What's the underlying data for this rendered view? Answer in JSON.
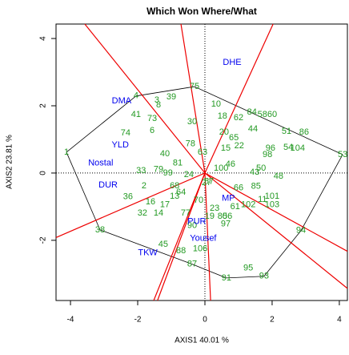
{
  "chart_data": {
    "type": "biplot",
    "title": "Which Won Where/What",
    "xlabel": "AXIS1 40.01 %",
    "ylabel": "AXIS2 23.81 %",
    "xlim": [
      -4.43,
      4.24
    ],
    "ylim": [
      -3.79,
      4.43
    ],
    "xticks": [
      -4,
      -2,
      0,
      2,
      4
    ],
    "yticks": [
      -2,
      0,
      2,
      4
    ],
    "genotypes": {
      "color": "#229922",
      "labels": [
        "4",
        "1",
        "75",
        "53",
        "94",
        "93",
        "91",
        "87",
        "38",
        "3",
        "39",
        "8",
        "41",
        "73",
        "6",
        "74",
        "30",
        "10",
        "18",
        "62",
        "84",
        "58",
        "60",
        "44",
        "51",
        "86",
        "20",
        "65",
        "22",
        "78",
        "15",
        "96",
        "54",
        "104",
        "98",
        "40",
        "81",
        "50",
        "48",
        "100",
        "46",
        "33",
        "79",
        "99",
        "24",
        "57",
        "2",
        "68",
        "64",
        "13",
        "36",
        "16",
        "17",
        "32",
        "14",
        "77",
        "70",
        "23",
        "61",
        "102",
        "103",
        "101",
        "11",
        "80",
        "56",
        "97",
        "90",
        "45",
        "88",
        "106",
        "95",
        "19",
        "27",
        "43",
        "66",
        "85",
        "63"
      ],
      "x": [
        -2.05,
        -4.12,
        -0.31,
        4.1,
        2.86,
        1.76,
        0.64,
        -0.38,
        -3.12,
        -1.43,
        -1.0,
        -1.38,
        -2.05,
        -1.57,
        -1.57,
        -2.36,
        -0.38,
        0.33,
        0.52,
        1.0,
        1.4,
        1.71,
        2.0,
        1.43,
        2.43,
        2.95,
        0.57,
        0.86,
        1.02,
        -0.43,
        0.62,
        1.95,
        2.48,
        2.76,
        1.86,
        -1.19,
        -0.81,
        1.67,
        2.19,
        0.48,
        0.76,
        -1.9,
        -1.38,
        -1.1,
        -0.48,
        0.12,
        -1.81,
        -0.9,
        -0.71,
        -0.9,
        -2.29,
        -1.62,
        -1.19,
        -1.86,
        -1.38,
        -0.57,
        -0.19,
        0.29,
        0.9,
        1.29,
        2.0,
        2.0,
        1.71,
        0.52,
        0.67,
        0.62,
        -0.38,
        -1.24,
        -0.71,
        -0.14,
        1.29,
        0.14,
        0.05,
        1.48,
        1.0,
        1.52,
        -0.07
      ],
      "y": [
        2.29,
        0.62,
        2.57,
        0.55,
        -1.71,
        -3.07,
        -3.12,
        -2.71,
        -1.69,
        2.17,
        2.26,
        2.02,
        1.74,
        1.62,
        1.26,
        1.19,
        1.52,
        2.05,
        1.69,
        1.64,
        1.81,
        1.74,
        1.74,
        1.31,
        1.24,
        1.21,
        1.21,
        1.05,
        0.81,
        0.86,
        0.74,
        0.74,
        0.76,
        0.74,
        0.55,
        0.57,
        0.29,
        0.14,
        -0.1,
        0.14,
        0.26,
        0.07,
        0.1,
        0,
        -0.05,
        -0.26,
        -0.38,
        -0.38,
        -0.57,
        -0.69,
        -0.71,
        -0.86,
        -0.95,
        -1.19,
        -1.19,
        -1.19,
        -0.81,
        -1.05,
        -1.0,
        -0.95,
        -0.95,
        -0.69,
        -0.79,
        -1.29,
        -1.29,
        -1.52,
        -1.57,
        -2.12,
        -2.31,
        -2.26,
        -2.83,
        -1.29,
        -0.29,
        0.02,
        -0.45,
        -0.4,
        0.62
      ]
    },
    "environments": {
      "color": "#0000ee",
      "labels": [
        "DHE",
        "DMA",
        "YLD",
        "Nostal",
        "DUR",
        "MP",
        "PUR",
        "Yousef",
        "TKW"
      ],
      "x": [
        0.81,
        -2.48,
        -2.52,
        -3.1,
        -2.88,
        0.7,
        -0.24,
        -0.05,
        -1.7
      ],
      "y": [
        3.29,
        2.14,
        0.83,
        0.29,
        -0.36,
        -0.76,
        -1.45,
        -1.95,
        -2.38
      ]
    },
    "polygon": [
      "1",
      "4",
      "75",
      "53",
      "94",
      "93",
      "91",
      "87",
      "38"
    ],
    "ray_color": "#ee0000"
  }
}
